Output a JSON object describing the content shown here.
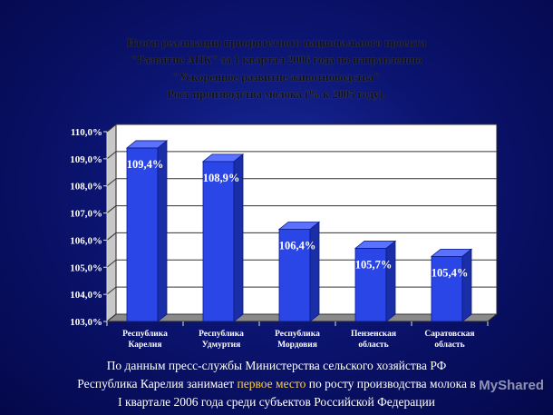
{
  "title_lines": [
    "Итоги реализации приоритетного национального проекта",
    "\"Развитие АПК\" за 1 квартал 2006 года по направлению",
    "\"Ускоренное развитие животноводства\"",
    "Рост производства молока (% к 2005 году)."
  ],
  "chart_data": {
    "type": "bar",
    "title": "Рост производства молока (% к 2005 году).",
    "categories": [
      [
        "Республика",
        "Карелия"
      ],
      [
        "Республика",
        "Удмуртия"
      ],
      [
        "Республика",
        "Мордовия"
      ],
      [
        "Пензенская",
        "область"
      ],
      [
        "Саратовская",
        "область"
      ]
    ],
    "values": [
      109.4,
      108.9,
      106.4,
      105.7,
      105.4
    ],
    "value_labels": [
      "109,4%",
      "108,9%",
      "106,4%",
      "105,7%",
      "105,4%"
    ],
    "ylim": [
      103.0,
      110.0
    ],
    "y_ticks": [
      "103,0%",
      "104,0%",
      "105,0%",
      "106,0%",
      "107,0%",
      "108,0%",
      "109,0%",
      "110,0%"
    ],
    "grid": true,
    "bar_color": "#2b46e6",
    "plot_background": "#ffffff"
  },
  "footer": {
    "line1": "По данным пресс-службы Министерства сельского хозяйства РФ",
    "line2_before": "Республика Карелия занимает ",
    "line2_highlight": "первое место",
    "line2_after": " по росту производства молока в",
    "line3": "I квартале 2006 года среди субъектов Российской Федерации"
  },
  "watermark": "MyShared"
}
